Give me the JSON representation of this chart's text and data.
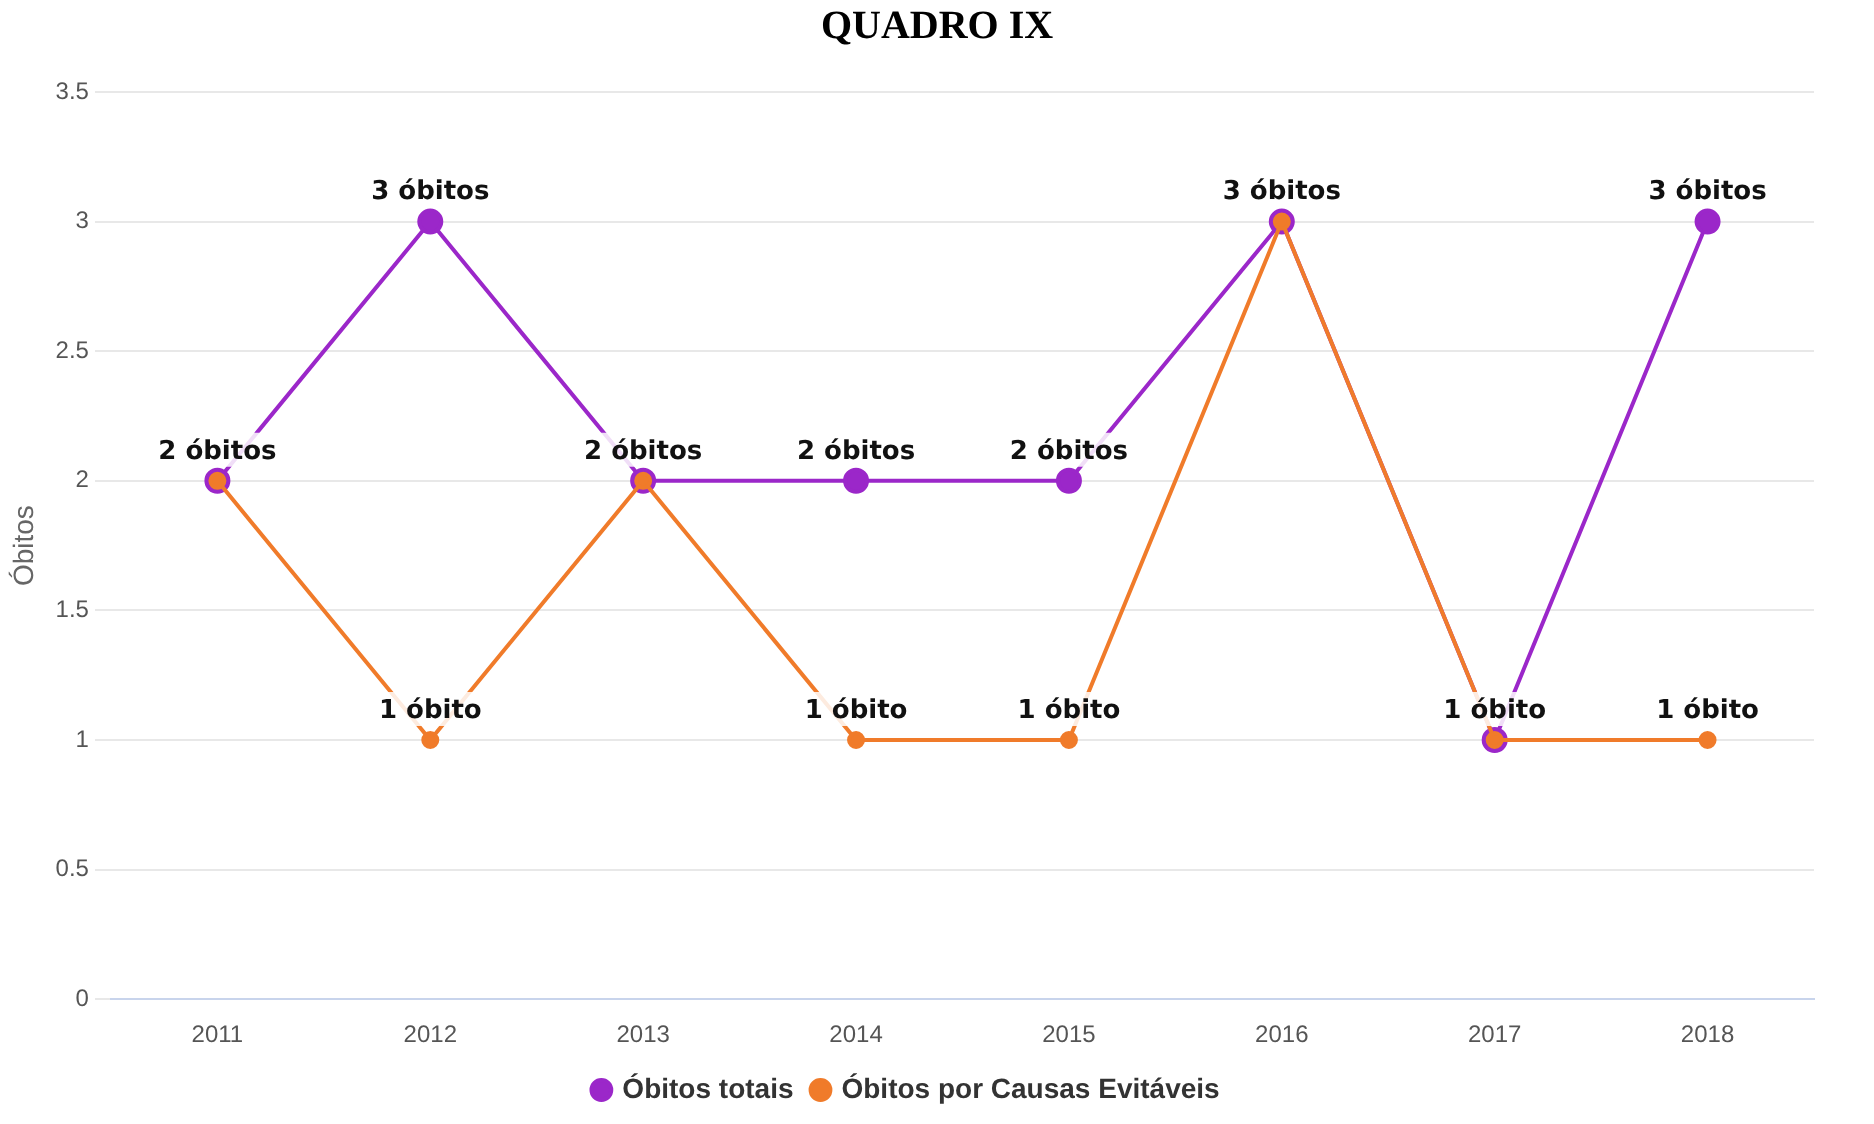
{
  "chart_data": {
    "type": "line",
    "title": "QUADRO IX",
    "ylabel": "Óbitos",
    "categories": [
      "2011",
      "2012",
      "2013",
      "2014",
      "2015",
      "2016",
      "2017",
      "2018"
    ],
    "series": [
      {
        "name": "Óbitos totais",
        "color": "#9b27c9",
        "values": [
          2,
          3,
          2,
          2,
          2,
          3,
          1,
          3
        ],
        "value_labels": [
          "2 óbitos",
          "3 óbitos",
          "2 óbitos",
          "2 óbitos",
          "2 óbitos",
          "3 óbitos",
          "1 óbito",
          "3 óbitos"
        ]
      },
      {
        "name": "Óbitos por Causas Evitáveis",
        "color": "#f07b2a",
        "values": [
          2,
          1,
          2,
          1,
          1,
          3,
          1,
          1
        ],
        "value_labels": [
          null,
          "1 óbito",
          null,
          "1 óbito",
          "1 óbito",
          null,
          null,
          "1 óbito"
        ]
      }
    ],
    "ylim": [
      0,
      3.5
    ],
    "yticks": [
      0,
      0.5,
      1,
      1.5,
      2,
      2.5,
      3,
      3.5
    ],
    "grid": "y",
    "legend": "bottom",
    "marker": "circle",
    "line_style": "solid"
  }
}
